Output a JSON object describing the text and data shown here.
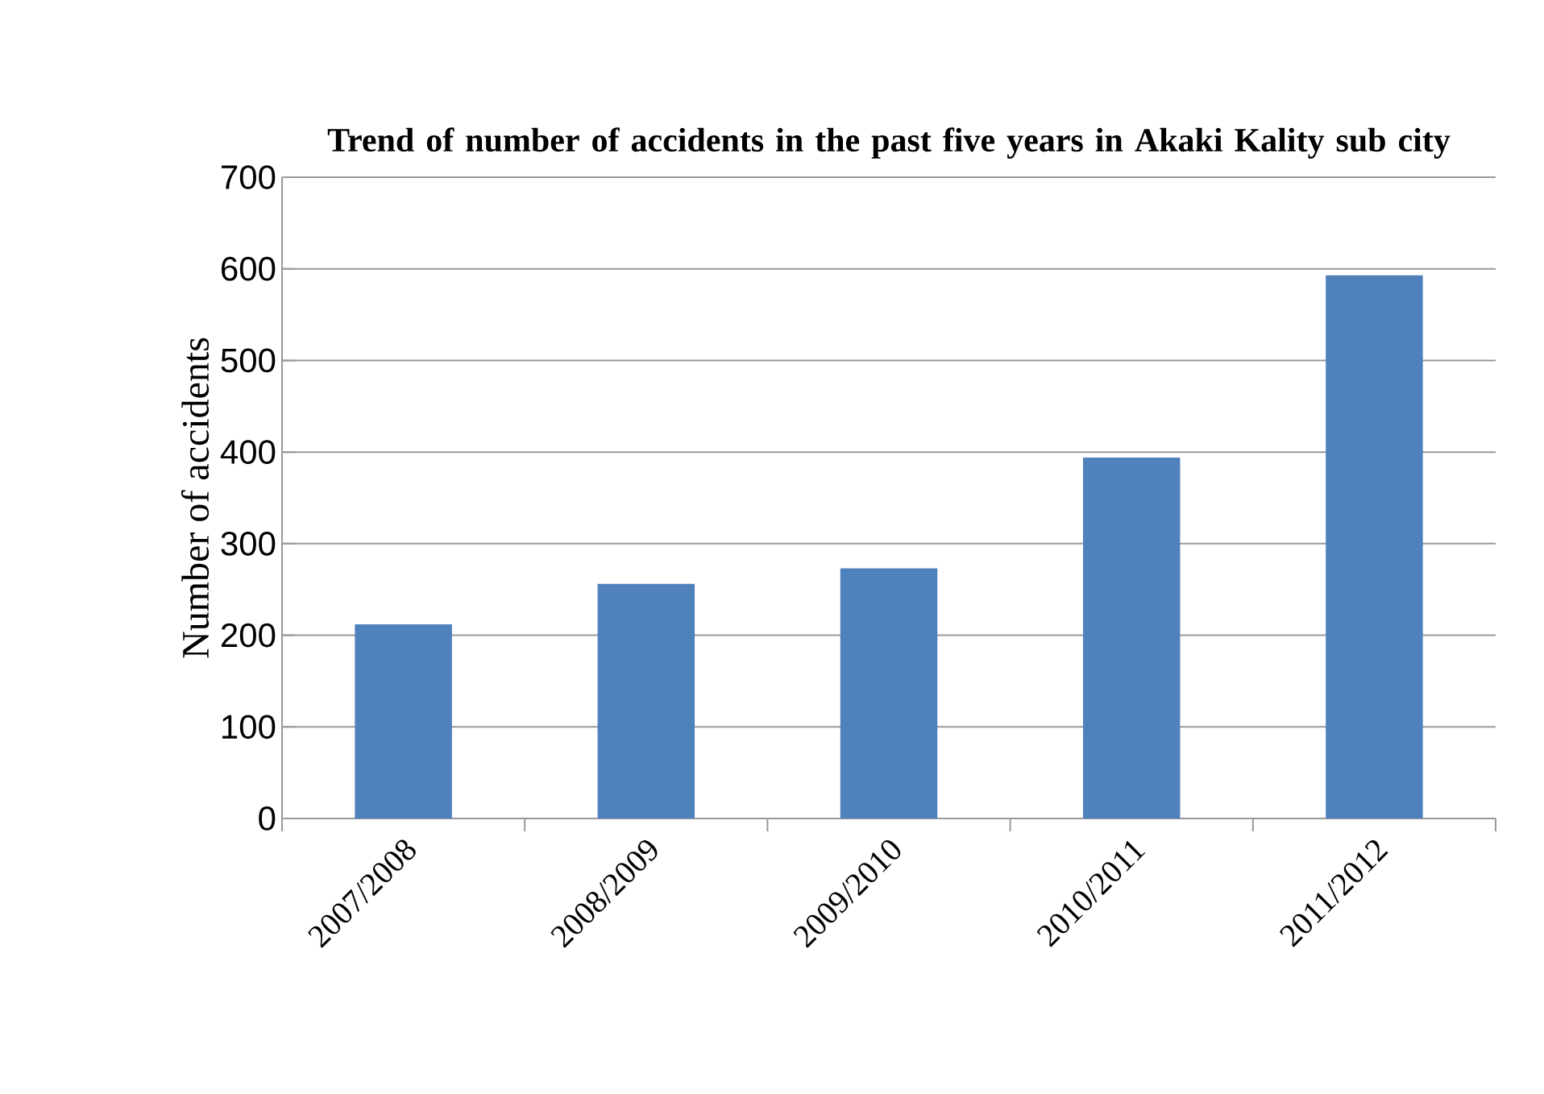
{
  "chart_data": {
    "type": "bar",
    "title": "Trend of number of accidents in the past five years in Akaki Kality sub city",
    "ylabel": "Number of accidents",
    "categories": [
      "2007/2008",
      "2008/2009",
      "2009/2010",
      "2010/2011",
      "2011/2012"
    ],
    "values": [
      212,
      256,
      273,
      394,
      593
    ],
    "color": "#4f81bd",
    "ylim": [
      0,
      700
    ],
    "yticks": [
      0,
      100,
      200,
      300,
      400,
      500,
      600,
      700
    ],
    "grid": "y"
  }
}
